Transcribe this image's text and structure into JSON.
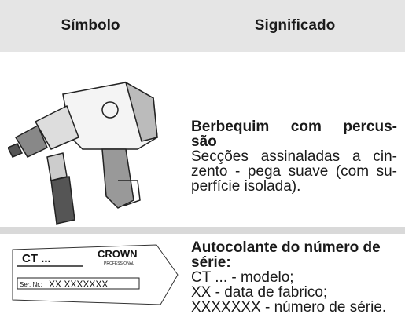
{
  "table": {
    "header": [
      "Símbolo",
      "Significado"
    ],
    "rows": [
      {
        "title": [
          "Berbequim com percus-",
          "são"
        ],
        "description": [
          "Secções assinaladas a cin-",
          "zento - pega suave (com su-",
          "perfície isolada).",
          ""
        ]
      },
      {
        "label": {
          "model": "CT ...",
          "brand": "CROWN",
          "brand_sub": "PROFESSIONAL",
          "serial_caption": "Ser. Nr.:",
          "serial": "XX XXXXXXX"
        },
        "title": [
          "Autocolante do número de",
          "série:"
        ],
        "description": [
          "CT ... - modelo;",
          "XX - data de fabrico;",
          "XXXXXXX - número de série."
        ]
      }
    ]
  }
}
